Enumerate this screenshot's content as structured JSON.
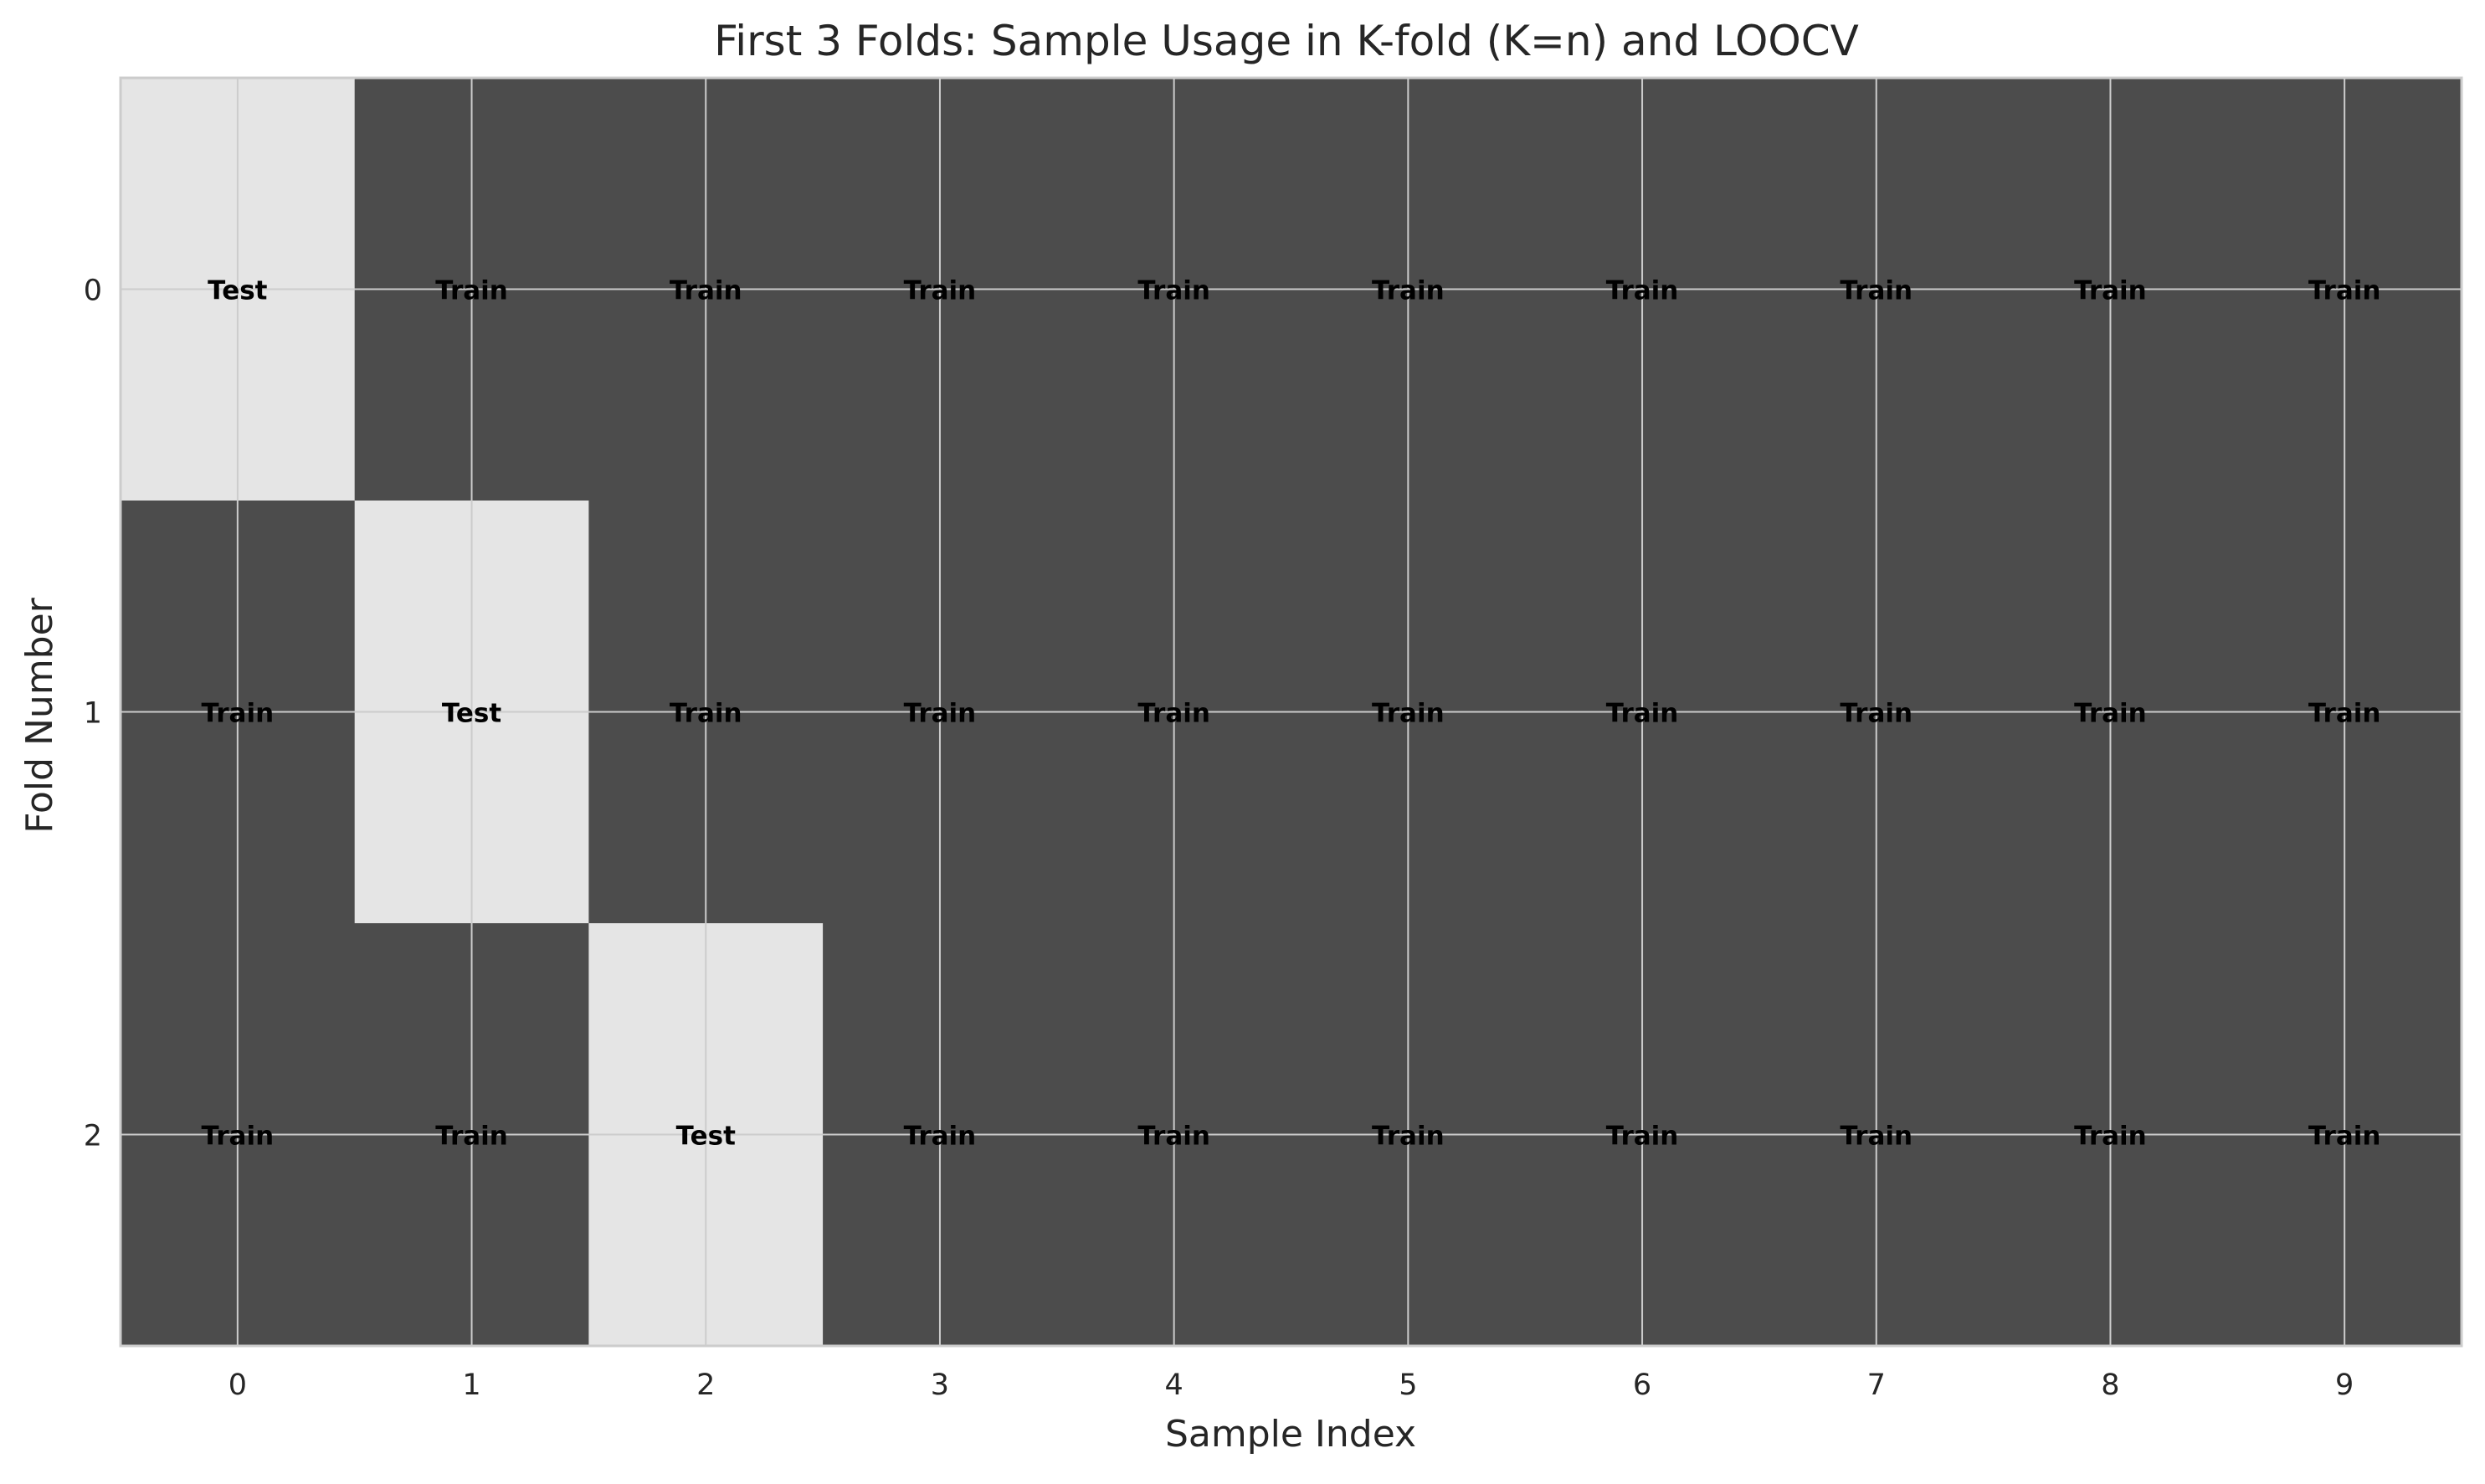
{
  "chart_data": {
    "type": "heatmap",
    "title": "First 3 Folds: Sample Usage in K-fold (K=n) and LOOCV",
    "xlabel": "Sample Index",
    "ylabel": "Fold Number",
    "x_ticks": [
      "0",
      "1",
      "2",
      "3",
      "4",
      "5",
      "6",
      "7",
      "8",
      "9"
    ],
    "y_ticks": [
      "0",
      "1",
      "2"
    ],
    "grid": true,
    "colors": {
      "Train": "#4c4c4c",
      "Test": "#e5e5e5",
      "grid": "#cccccc",
      "frame": "#cccccc",
      "text": "#000000",
      "axis_text": "#262626"
    },
    "cells": [
      [
        "Test",
        "Train",
        "Train",
        "Train",
        "Train",
        "Train",
        "Train",
        "Train",
        "Train",
        "Train"
      ],
      [
        "Train",
        "Test",
        "Train",
        "Train",
        "Train",
        "Train",
        "Train",
        "Train",
        "Train",
        "Train"
      ],
      [
        "Train",
        "Train",
        "Test",
        "Train",
        "Train",
        "Train",
        "Train",
        "Train",
        "Train",
        "Train"
      ]
    ]
  }
}
